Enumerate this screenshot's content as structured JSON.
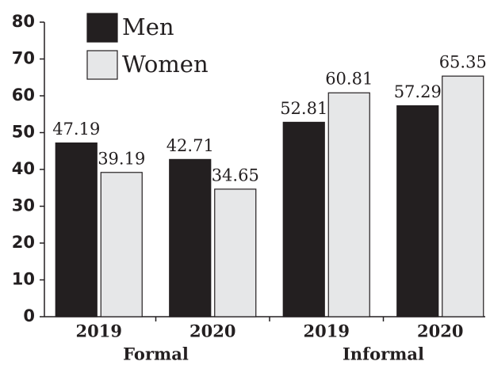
{
  "chart_data": {
    "type": "bar",
    "categories": [
      "2019",
      "2020",
      "2019",
      "2020"
    ],
    "groups": [
      "Formal",
      "Informal"
    ],
    "series": [
      {
        "name": "Men",
        "color": "#231f20",
        "values": [
          47.19,
          42.71,
          52.81,
          57.29
        ]
      },
      {
        "name": "Women",
        "color": "#e6e7e8",
        "values": [
          39.19,
          34.65,
          60.81,
          65.35
        ]
      }
    ],
    "ylim": [
      0,
      80
    ],
    "yticks": [
      0,
      10,
      20,
      30,
      40,
      50,
      60,
      70,
      80
    ],
    "legend": "upper left"
  }
}
